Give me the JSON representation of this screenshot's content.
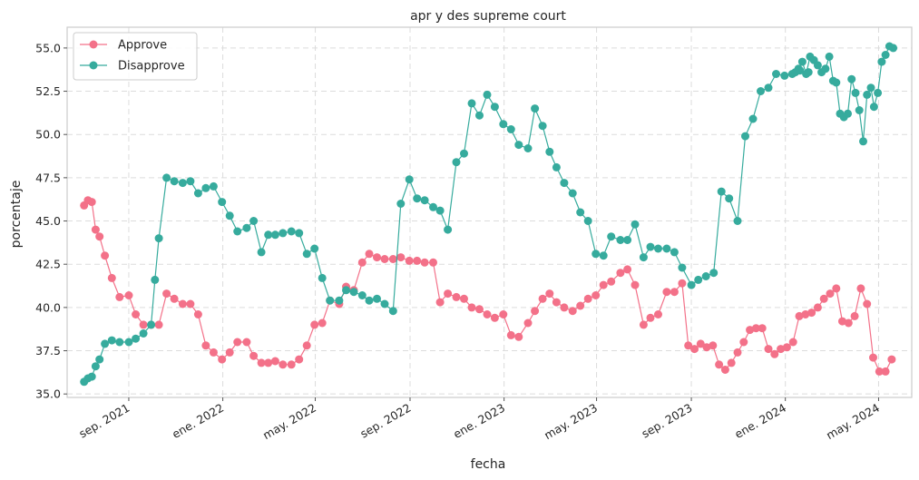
{
  "chart_data": {
    "type": "line",
    "title": "apr y des supreme court",
    "xlabel": "fecha",
    "ylabel": "porcentaje",
    "ylim": [
      34.8,
      56.2
    ],
    "xlim": [
      "2021-06-13",
      "2024-06-13"
    ],
    "yticks": [
      35.0,
      37.5,
      40.0,
      42.5,
      45.0,
      47.5,
      50.0,
      52.5,
      55.0
    ],
    "ytick_labels": [
      "35.0",
      "37.5",
      "40.0",
      "42.5",
      "45.0",
      "47.5",
      "50.0",
      "52.5",
      "55.0"
    ],
    "xticks": [
      "2021-09-01",
      "2022-01-01",
      "2022-05-01",
      "2022-09-01",
      "2023-01-01",
      "2023-05-01",
      "2023-09-01",
      "2024-01-01",
      "2024-05-01"
    ],
    "xtick_labels": [
      "sep. 2021",
      "ene. 2022",
      "may. 2022",
      "sep. 2022",
      "ene. 2023",
      "may. 2023",
      "sep. 2023",
      "ene. 2024",
      "may. 2024"
    ],
    "grid": true,
    "legend_position": "top-left",
    "series": [
      {
        "name": "Approve",
        "color": "#f37189",
        "x": [
          "2021-07-05",
          "2021-07-10",
          "2021-07-15",
          "2021-07-20",
          "2021-07-25",
          "2021-08-01",
          "2021-08-10",
          "2021-08-20",
          "2021-09-01",
          "2021-09-10",
          "2021-09-20",
          "2021-09-30",
          "2021-10-10",
          "2021-10-20",
          "2021-10-30",
          "2021-11-10",
          "2021-11-20",
          "2021-11-30",
          "2021-12-10",
          "2021-12-20",
          "2021-12-31",
          "2022-01-10",
          "2022-01-20",
          "2022-02-01",
          "2022-02-10",
          "2022-02-20",
          "2022-03-01",
          "2022-03-10",
          "2022-03-20",
          "2022-03-31",
          "2022-04-10",
          "2022-04-20",
          "2022-04-30",
          "2022-05-10",
          "2022-05-20",
          "2022-06-01",
          "2022-06-10",
          "2022-06-20",
          "2022-07-01",
          "2022-07-10",
          "2022-07-20",
          "2022-07-30",
          "2022-08-10",
          "2022-08-20",
          "2022-08-31",
          "2022-09-10",
          "2022-09-20",
          "2022-10-01",
          "2022-10-10",
          "2022-10-20",
          "2022-10-31",
          "2022-11-10",
          "2022-11-20",
          "2022-11-30",
          "2022-12-10",
          "2022-12-20",
          "2022-12-31",
          "2023-01-10",
          "2023-01-20",
          "2023-02-01",
          "2023-02-10",
          "2023-02-20",
          "2023-03-01",
          "2023-03-10",
          "2023-03-20",
          "2023-03-31",
          "2023-04-10",
          "2023-04-20",
          "2023-04-30",
          "2023-05-10",
          "2023-05-20",
          "2023-06-01",
          "2023-06-10",
          "2023-06-20",
          "2023-07-01",
          "2023-07-10",
          "2023-07-20",
          "2023-07-31",
          "2023-08-10",
          "2023-08-20",
          "2023-09-01",
          "2023-09-10",
          "2023-09-20",
          "2023-09-30",
          "2023-10-10",
          "2023-10-20",
          "2023-10-31",
          "2023-11-10",
          "2023-11-20",
          "2023-11-30",
          "2023-12-10",
          "2023-12-20",
          "2023-12-31",
          "2024-01-10",
          "2024-01-20",
          "2024-01-31",
          "2024-02-10",
          "2024-02-20",
          "2024-03-01",
          "2024-03-10",
          "2024-03-20",
          "2024-03-31",
          "2024-04-10",
          "2024-04-20",
          "2024-04-30",
          "2024-05-10"
        ],
        "values": [
          45.9,
          46.2,
          46.1,
          44.5,
          44.1,
          43.0,
          41.7,
          40.6,
          40.7,
          39.6,
          39.0,
          39.0,
          39.0,
          40.8,
          40.5,
          40.2,
          40.2,
          39.6,
          37.8,
          37.4,
          37.0,
          37.4,
          38.0,
          38.0,
          37.2,
          36.8,
          36.8,
          36.9,
          36.7,
          36.7,
          37.0,
          37.8,
          39.0,
          39.1,
          40.4,
          40.2,
          41.2,
          41.0,
          42.6,
          43.1,
          42.9,
          42.8,
          42.8,
          42.9,
          42.7,
          42.7,
          42.6,
          42.6,
          40.3,
          40.8,
          40.6,
          40.5,
          40.0,
          39.9,
          39.6,
          39.4,
          39.6,
          38.4,
          38.3,
          39.1,
          39.8,
          40.5,
          40.8,
          40.3,
          40.0,
          39.8,
          40.1,
          40.5,
          40.7,
          41.3,
          41.5,
          42.0,
          42.2,
          41.3,
          39.0,
          39.4,
          39.6,
          40.9,
          40.9,
          41.4,
          41.2,
          41.5,
          42.4,
          43.1,
          43.5,
          43.8,
          44.0,
          44.3,
          44.3,
          43.5,
          42.9,
          42.4,
          41.8,
          39.6,
          39.3,
          38.3,
          38.6,
          38.9,
          39.0,
          39.0,
          38.5,
          38.0,
          37.2,
          37.3,
          37.1,
          37.8
        ],
        "note_values_second_half": [
          37.8,
          37.6,
          37.9,
          37.7,
          37.8,
          36.7,
          36.4,
          36.8,
          37.4,
          38.0,
          38.7,
          38.8,
          38.8,
          37.6,
          37.3,
          37.6,
          37.7,
          38.0,
          39.5,
          39.6,
          39.7,
          40.0,
          40.5,
          40.8,
          41.1,
          39.2,
          39.1,
          39.5,
          41.1,
          40.2,
          37.1,
          36.3,
          36.3,
          37.0
        ]
      },
      {
        "name": "Disapprove",
        "color": "#36ab9d",
        "x": [],
        "values": []
      }
    ]
  }
}
